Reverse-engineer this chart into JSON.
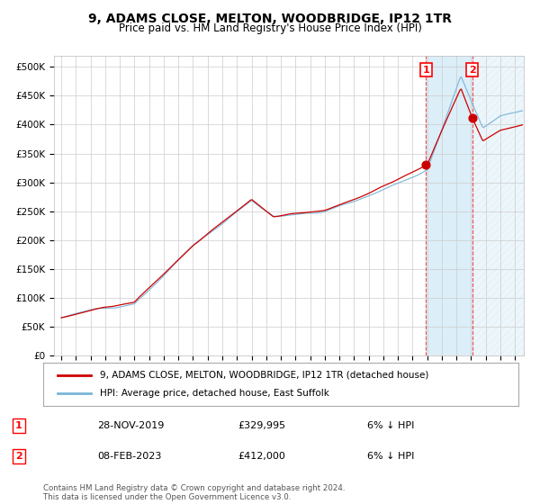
{
  "title": "9, ADAMS CLOSE, MELTON, WOODBRIDGE, IP12 1TR",
  "subtitle": "Price paid vs. HM Land Registry's House Price Index (HPI)",
  "legend1": "9, ADAMS CLOSE, MELTON, WOODBRIDGE, IP12 1TR (detached house)",
  "legend2": "HPI: Average price, detached house, East Suffolk",
  "transaction1_date": "28-NOV-2019",
  "transaction1_price": 329995,
  "transaction1_label": "1",
  "transaction2_date": "08-FEB-2023",
  "transaction2_price": 412000,
  "transaction2_label": "2",
  "transaction1_pct": "6% ↓ HPI",
  "transaction2_pct": "6% ↓ HPI",
  "ylabel_ticks": [
    "£0",
    "£50K",
    "£100K",
    "£150K",
    "£200K",
    "£250K",
    "£300K",
    "£350K",
    "£400K",
    "£450K",
    "£500K"
  ],
  "ylim": [
    0,
    520000
  ],
  "xstart_year": 1995,
  "xend_year": 2026,
  "hpi_color": "#7ab4d8",
  "property_color": "#cc0000",
  "background_color": "#ffffff",
  "grid_color": "#cccccc",
  "shade_color": "#dceef8",
  "footnote": "Contains HM Land Registry data © Crown copyright and database right 2024.\nThis data is licensed under the Open Government Licence v3.0."
}
